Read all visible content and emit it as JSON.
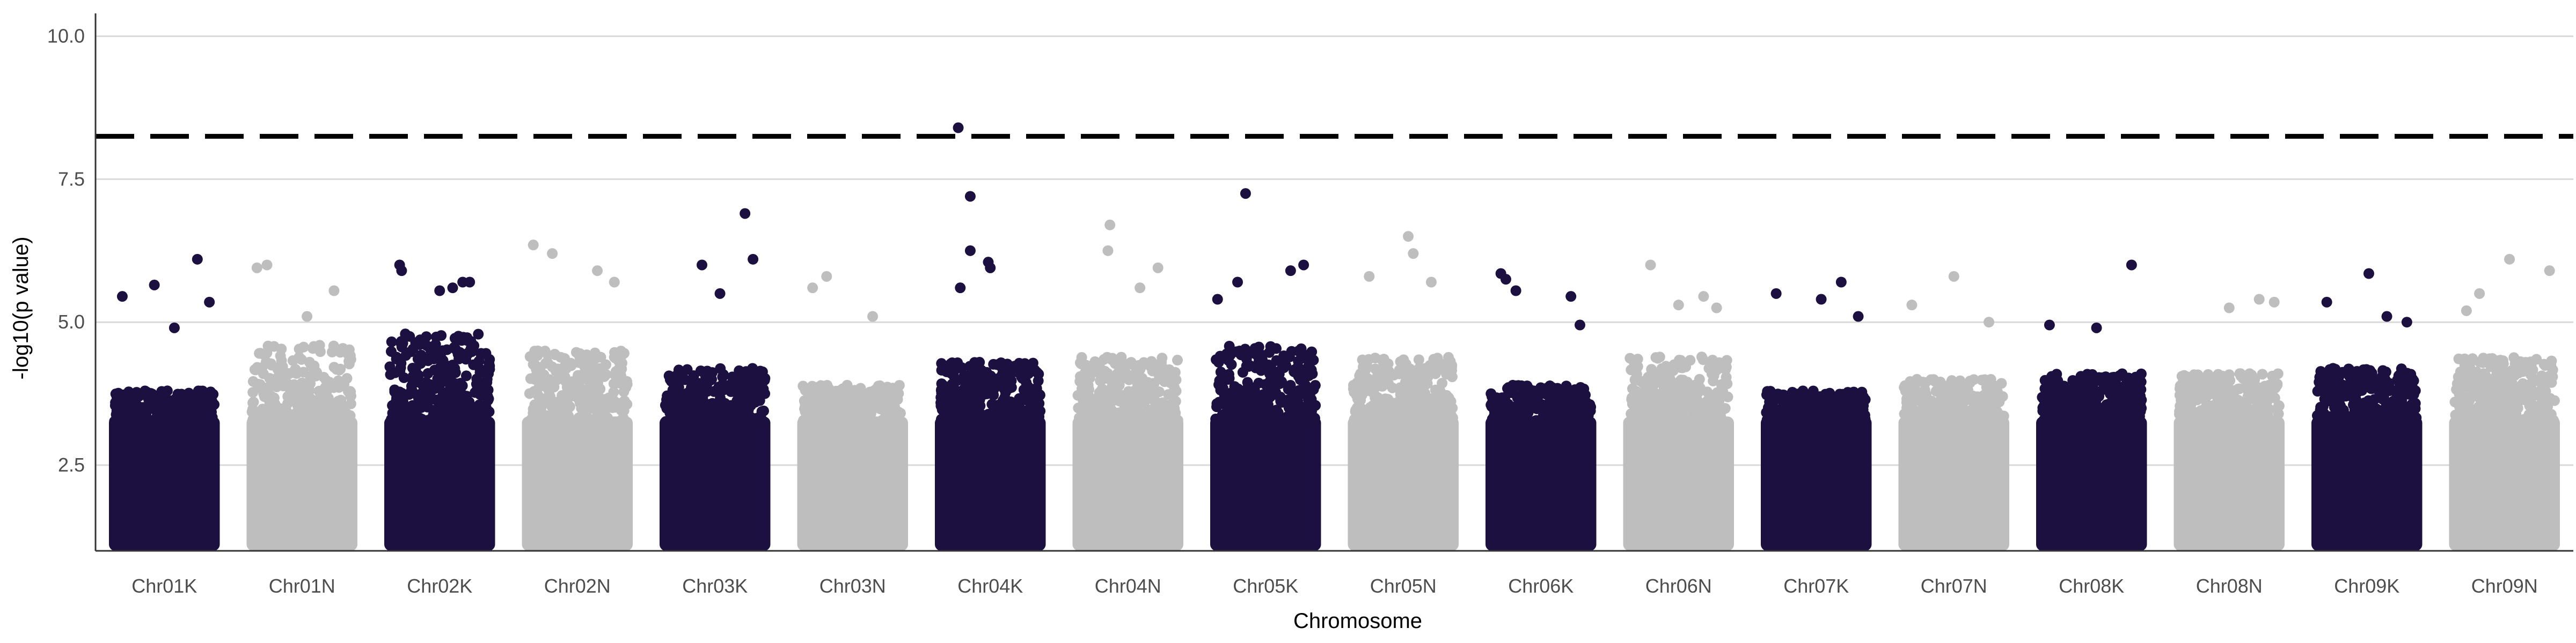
{
  "chart_data": {
    "type": "scatter",
    "subtype": "manhattan",
    "title": "",
    "xlabel": "Chromosome",
    "ylabel": "-log10(p value)",
    "ylim": [
      1.0,
      10.4
    ],
    "y_ticks": [
      2.5,
      5.0,
      7.5,
      10.0
    ],
    "y_tick_labels": [
      "2.5",
      "5.0",
      "7.5",
      "10.0"
    ],
    "grid": {
      "horizontal": true,
      "vertical": false
    },
    "legend": "none",
    "significance_threshold": 8.25,
    "threshold_style": "dashed",
    "colors": {
      "odd_chromosome": "#1c1040",
      "even_chromosome": "#bebebe",
      "threshold": "#000000",
      "grid": "#d9d9d9",
      "axis": "#333333"
    },
    "categories": [
      "Chr01K",
      "Chr01N",
      "Chr02K",
      "Chr02N",
      "Chr03K",
      "Chr03N",
      "Chr04K",
      "Chr04N",
      "Chr05K",
      "Chr05N",
      "Chr06K",
      "Chr06N",
      "Chr07K",
      "Chr07N",
      "Chr08K",
      "Chr08N",
      "Chr09K",
      "Chr09N"
    ],
    "dense_band_top": [
      3.8,
      4.6,
      4.8,
      4.5,
      4.2,
      3.9,
      4.3,
      4.4,
      4.6,
      4.4,
      3.9,
      4.4,
      3.8,
      4.0,
      4.1,
      4.1,
      4.2,
      4.4
    ],
    "top_points": [
      {
        "chr": "Chr01K",
        "pos": 0.08,
        "y": 5.45
      },
      {
        "chr": "Chr01K",
        "pos": 0.4,
        "y": 5.65
      },
      {
        "chr": "Chr01K",
        "pos": 0.83,
        "y": 6.1
      },
      {
        "chr": "Chr01K",
        "pos": 0.6,
        "y": 4.9
      },
      {
        "chr": "Chr01K",
        "pos": 0.95,
        "y": 5.35
      },
      {
        "chr": "Chr01N",
        "pos": 0.05,
        "y": 5.95
      },
      {
        "chr": "Chr01N",
        "pos": 0.15,
        "y": 6.0
      },
      {
        "chr": "Chr01N",
        "pos": 0.55,
        "y": 5.1
      },
      {
        "chr": "Chr01N",
        "pos": 0.82,
        "y": 5.55
      },
      {
        "chr": "Chr02K",
        "pos": 0.1,
        "y": 6.0
      },
      {
        "chr": "Chr02K",
        "pos": 0.12,
        "y": 5.9
      },
      {
        "chr": "Chr02K",
        "pos": 0.5,
        "y": 5.55
      },
      {
        "chr": "Chr02K",
        "pos": 0.63,
        "y": 5.6
      },
      {
        "chr": "Chr02K",
        "pos": 0.73,
        "y": 5.7
      },
      {
        "chr": "Chr02K",
        "pos": 0.8,
        "y": 5.7
      },
      {
        "chr": "Chr02N",
        "pos": 0.06,
        "y": 6.35
      },
      {
        "chr": "Chr02N",
        "pos": 0.25,
        "y": 6.2
      },
      {
        "chr": "Chr02N",
        "pos": 0.7,
        "y": 5.9
      },
      {
        "chr": "Chr02N",
        "pos": 0.87,
        "y": 5.7
      },
      {
        "chr": "Chr03K",
        "pos": 0.37,
        "y": 6.0
      },
      {
        "chr": "Chr03K",
        "pos": 0.8,
        "y": 6.9
      },
      {
        "chr": "Chr03K",
        "pos": 0.88,
        "y": 6.1
      },
      {
        "chr": "Chr03K",
        "pos": 0.55,
        "y": 5.5
      },
      {
        "chr": "Chr03N",
        "pos": 0.1,
        "y": 5.6
      },
      {
        "chr": "Chr03N",
        "pos": 0.24,
        "y": 5.8
      },
      {
        "chr": "Chr03N",
        "pos": 0.7,
        "y": 5.1
      },
      {
        "chr": "Chr04K",
        "pos": 0.18,
        "y": 8.4
      },
      {
        "chr": "Chr04K",
        "pos": 0.3,
        "y": 7.2
      },
      {
        "chr": "Chr04K",
        "pos": 0.3,
        "y": 6.25
      },
      {
        "chr": "Chr04K",
        "pos": 0.48,
        "y": 6.05
      },
      {
        "chr": "Chr04K",
        "pos": 0.5,
        "y": 5.95
      },
      {
        "chr": "Chr04K",
        "pos": 0.2,
        "y": 5.6
      },
      {
        "chr": "Chr04N",
        "pos": 0.32,
        "y": 6.7
      },
      {
        "chr": "Chr04N",
        "pos": 0.3,
        "y": 6.25
      },
      {
        "chr": "Chr04N",
        "pos": 0.8,
        "y": 5.95
      },
      {
        "chr": "Chr04N",
        "pos": 0.62,
        "y": 5.6
      },
      {
        "chr": "Chr05K",
        "pos": 0.3,
        "y": 7.25
      },
      {
        "chr": "Chr05K",
        "pos": 0.22,
        "y": 5.7
      },
      {
        "chr": "Chr05K",
        "pos": 0.88,
        "y": 6.0
      },
      {
        "chr": "Chr05K",
        "pos": 0.75,
        "y": 5.9
      },
      {
        "chr": "Chr05K",
        "pos": 0.02,
        "y": 5.4
      },
      {
        "chr": "Chr05N",
        "pos": 0.55,
        "y": 6.5
      },
      {
        "chr": "Chr05N",
        "pos": 0.6,
        "y": 6.2
      },
      {
        "chr": "Chr05N",
        "pos": 0.16,
        "y": 5.8
      },
      {
        "chr": "Chr05N",
        "pos": 0.78,
        "y": 5.7
      },
      {
        "chr": "Chr06K",
        "pos": 0.1,
        "y": 5.85
      },
      {
        "chr": "Chr06K",
        "pos": 0.15,
        "y": 5.75
      },
      {
        "chr": "Chr06K",
        "pos": 0.25,
        "y": 5.55
      },
      {
        "chr": "Chr06K",
        "pos": 0.8,
        "y": 5.45
      },
      {
        "chr": "Chr06K",
        "pos": 0.89,
        "y": 4.95
      },
      {
        "chr": "Chr06N",
        "pos": 0.22,
        "y": 6.0
      },
      {
        "chr": "Chr06N",
        "pos": 0.5,
        "y": 5.3
      },
      {
        "chr": "Chr06N",
        "pos": 0.75,
        "y": 5.45
      },
      {
        "chr": "Chr06N",
        "pos": 0.88,
        "y": 5.25
      },
      {
        "chr": "Chr07K",
        "pos": 0.1,
        "y": 5.5
      },
      {
        "chr": "Chr07K",
        "pos": 0.75,
        "y": 5.7
      },
      {
        "chr": "Chr07K",
        "pos": 0.55,
        "y": 5.4
      },
      {
        "chr": "Chr07K",
        "pos": 0.92,
        "y": 5.1
      },
      {
        "chr": "Chr07N",
        "pos": 0.5,
        "y": 5.8
      },
      {
        "chr": "Chr07N",
        "pos": 0.08,
        "y": 5.3
      },
      {
        "chr": "Chr07N",
        "pos": 0.85,
        "y": 5.0
      },
      {
        "chr": "Chr08K",
        "pos": 0.08,
        "y": 4.95
      },
      {
        "chr": "Chr08K",
        "pos": 0.55,
        "y": 4.9
      },
      {
        "chr": "Chr08K",
        "pos": 0.9,
        "y": 6.0
      },
      {
        "chr": "Chr08N",
        "pos": 0.5,
        "y": 5.25
      },
      {
        "chr": "Chr08N",
        "pos": 0.8,
        "y": 5.4
      },
      {
        "chr": "Chr08N",
        "pos": 0.95,
        "y": 5.35
      },
      {
        "chr": "Chr09K",
        "pos": 0.52,
        "y": 5.85
      },
      {
        "chr": "Chr09K",
        "pos": 0.1,
        "y": 5.35
      },
      {
        "chr": "Chr09K",
        "pos": 0.9,
        "y": 5.0
      },
      {
        "chr": "Chr09K",
        "pos": 0.7,
        "y": 5.1
      },
      {
        "chr": "Chr09N",
        "pos": 0.55,
        "y": 6.1
      },
      {
        "chr": "Chr09N",
        "pos": 0.95,
        "y": 5.9
      },
      {
        "chr": "Chr09N",
        "pos": 0.25,
        "y": 5.5
      },
      {
        "chr": "Chr09N",
        "pos": 0.12,
        "y": 5.2
      }
    ]
  }
}
